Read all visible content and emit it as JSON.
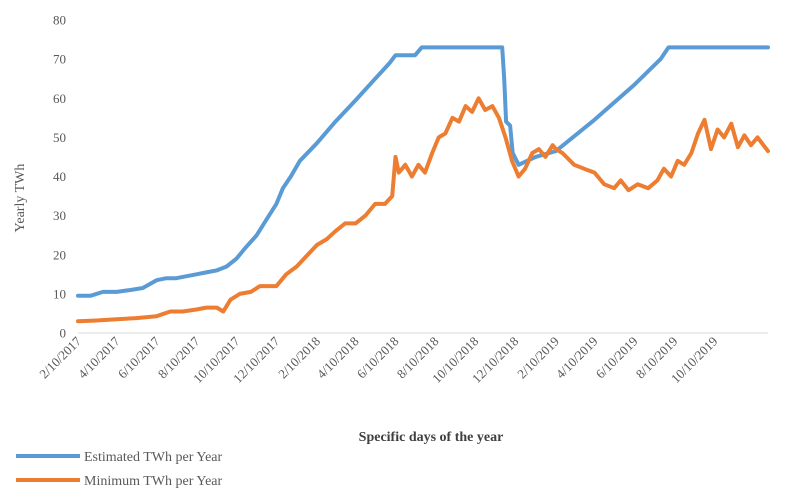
{
  "chart_data": {
    "type": "line",
    "title": "",
    "xlabel": "Specific days of the year",
    "ylabel": "Yearly TWh",
    "ylim": [
      0,
      80
    ],
    "yticks": [
      0,
      10,
      20,
      30,
      40,
      50,
      60,
      70,
      80
    ],
    "xlim": [
      "2017-02-10",
      "2019-12-31"
    ],
    "grid": false,
    "legend_position": "bottom-left",
    "xtick_labels": [
      {
        "date": "2017-02-10",
        "label": "2/10/2017"
      },
      {
        "date": "2017-04-10",
        "label": "4/10/2017"
      },
      {
        "date": "2017-06-10",
        "label": "6/10/2017"
      },
      {
        "date": "2017-08-10",
        "label": "8/10/2017"
      },
      {
        "date": "2017-10-10",
        "label": "10/10/2017"
      },
      {
        "date": "2017-12-10",
        "label": "12/10/2017"
      },
      {
        "date": "2018-02-10",
        "label": "2/10/2018"
      },
      {
        "date": "2018-04-10",
        "label": "4/10/2018"
      },
      {
        "date": "2018-06-10",
        "label": "6/10/2018"
      },
      {
        "date": "2018-08-10",
        "label": "8/10/2018"
      },
      {
        "date": "2018-10-10",
        "label": "10/10/2018"
      },
      {
        "date": "2018-12-10",
        "label": "12/10/2018"
      },
      {
        "date": "2019-02-10",
        "label": "2/10/2019"
      },
      {
        "date": "2019-04-10",
        "label": "4/10/2019"
      },
      {
        "date": "2019-06-10",
        "label": "6/10/2019"
      },
      {
        "date": "2019-08-10",
        "label": "8/10/2019"
      },
      {
        "date": "2019-10-10",
        "label": "10/10/2019"
      }
    ],
    "series": [
      {
        "name": "Estimated TWh per Year",
        "color": "#5b9bd5",
        "points": [
          [
            "2017-02-10",
            9.5
          ],
          [
            "2017-03-01",
            9.5
          ],
          [
            "2017-03-20",
            10.5
          ],
          [
            "2017-04-10",
            10.5
          ],
          [
            "2017-05-01",
            11.0
          ],
          [
            "2017-05-20",
            11.5
          ],
          [
            "2017-06-10",
            13.5
          ],
          [
            "2017-06-25",
            14.0
          ],
          [
            "2017-07-10",
            14.0
          ],
          [
            "2017-07-25",
            14.5
          ],
          [
            "2017-08-10",
            15.0
          ],
          [
            "2017-08-25",
            15.5
          ],
          [
            "2017-09-10",
            16.0
          ],
          [
            "2017-09-25",
            17.0
          ],
          [
            "2017-10-10",
            19.0
          ],
          [
            "2017-10-25",
            22.0
          ],
          [
            "2017-11-10",
            25.0
          ],
          [
            "2017-11-25",
            29.0
          ],
          [
            "2017-12-10",
            33.0
          ],
          [
            "2017-12-20",
            37.0
          ],
          [
            "2018-01-01",
            40.0
          ],
          [
            "2018-01-15",
            44.0
          ],
          [
            "2018-02-10",
            48.5
          ],
          [
            "2018-03-10",
            54.0
          ],
          [
            "2018-04-10",
            59.5
          ],
          [
            "2018-05-10",
            65.0
          ],
          [
            "2018-06-01",
            69.0
          ],
          [
            "2018-06-10",
            71.0
          ],
          [
            "2018-07-10",
            71.0
          ],
          [
            "2018-07-20",
            73.0
          ],
          [
            "2018-10-10",
            73.0
          ],
          [
            "2018-11-10",
            73.0
          ],
          [
            "2018-11-20",
            73.0
          ],
          [
            "2018-11-23",
            65.0
          ],
          [
            "2018-11-26",
            54.0
          ],
          [
            "2018-12-02",
            53.0
          ],
          [
            "2018-12-06",
            46.0
          ],
          [
            "2018-12-15",
            43.0
          ],
          [
            "2019-01-10",
            45.0
          ],
          [
            "2019-02-10",
            46.5
          ],
          [
            "2019-04-10",
            54.5
          ],
          [
            "2019-06-10",
            63.5
          ],
          [
            "2019-07-20",
            70.0
          ],
          [
            "2019-08-01",
            73.0
          ],
          [
            "2019-10-10",
            73.0
          ],
          [
            "2019-12-31",
            73.0
          ]
        ]
      },
      {
        "name": "Minimum TWh per Year",
        "color": "#ed7d31",
        "points": [
          [
            "2017-02-10",
            3.0
          ],
          [
            "2017-03-10",
            3.2
          ],
          [
            "2017-04-10",
            3.5
          ],
          [
            "2017-05-10",
            3.8
          ],
          [
            "2017-06-10",
            4.3
          ],
          [
            "2017-07-01",
            5.5
          ],
          [
            "2017-07-20",
            5.5
          ],
          [
            "2017-08-10",
            6.0
          ],
          [
            "2017-08-25",
            6.5
          ],
          [
            "2017-09-10",
            6.5
          ],
          [
            "2017-09-20",
            5.5
          ],
          [
            "2017-10-01",
            8.5
          ],
          [
            "2017-10-15",
            10.0
          ],
          [
            "2017-11-01",
            10.5
          ],
          [
            "2017-11-15",
            12.0
          ],
          [
            "2017-12-10",
            12.0
          ],
          [
            "2017-12-25",
            15.0
          ],
          [
            "2018-01-10",
            17.0
          ],
          [
            "2018-02-10",
            22.5
          ],
          [
            "2018-02-25",
            24.0
          ],
          [
            "2018-03-10",
            26.0
          ],
          [
            "2018-03-25",
            28.0
          ],
          [
            "2018-04-10",
            28.0
          ],
          [
            "2018-04-25",
            30.0
          ],
          [
            "2018-05-10",
            33.0
          ],
          [
            "2018-05-25",
            33.0
          ],
          [
            "2018-06-05",
            35.0
          ],
          [
            "2018-06-10",
            45.0
          ],
          [
            "2018-06-15",
            41.0
          ],
          [
            "2018-06-25",
            43.0
          ],
          [
            "2018-07-05",
            40.0
          ],
          [
            "2018-07-15",
            43.0
          ],
          [
            "2018-07-25",
            41.0
          ],
          [
            "2018-08-05",
            46.0
          ],
          [
            "2018-08-15",
            50.0
          ],
          [
            "2018-08-25",
            51.0
          ],
          [
            "2018-09-05",
            55.0
          ],
          [
            "2018-09-15",
            54.0
          ],
          [
            "2018-09-25",
            58.0
          ],
          [
            "2018-10-05",
            56.5
          ],
          [
            "2018-10-15",
            60.0
          ],
          [
            "2018-10-25",
            57.0
          ],
          [
            "2018-11-05",
            58.0
          ],
          [
            "2018-11-15",
            55.0
          ],
          [
            "2018-11-25",
            50.0
          ],
          [
            "2018-12-05",
            44.0
          ],
          [
            "2018-12-15",
            40.0
          ],
          [
            "2018-12-25",
            42.0
          ],
          [
            "2019-01-05",
            46.0
          ],
          [
            "2019-01-15",
            47.0
          ],
          [
            "2019-01-25",
            45.0
          ],
          [
            "2019-02-05",
            48.0
          ],
          [
            "2019-02-10",
            47.0
          ],
          [
            "2019-02-20",
            46.0
          ],
          [
            "2019-03-10",
            43.0
          ],
          [
            "2019-03-25",
            42.0
          ],
          [
            "2019-04-10",
            41.0
          ],
          [
            "2019-04-25",
            38.0
          ],
          [
            "2019-05-10",
            37.0
          ],
          [
            "2019-05-20",
            39.0
          ],
          [
            "2019-06-01",
            36.5
          ],
          [
            "2019-06-15",
            38.0
          ],
          [
            "2019-07-01",
            37.0
          ],
          [
            "2019-07-15",
            39.0
          ],
          [
            "2019-07-25",
            42.0
          ],
          [
            "2019-08-05",
            40.0
          ],
          [
            "2019-08-15",
            44.0
          ],
          [
            "2019-08-25",
            43.0
          ],
          [
            "2019-09-05",
            46.0
          ],
          [
            "2019-09-15",
            51.0
          ],
          [
            "2019-09-25",
            54.5
          ],
          [
            "2019-10-05",
            47.0
          ],
          [
            "2019-10-15",
            52.0
          ],
          [
            "2019-10-25",
            50.0
          ],
          [
            "2019-11-05",
            53.5
          ],
          [
            "2019-11-15",
            47.5
          ],
          [
            "2019-11-25",
            50.5
          ],
          [
            "2019-12-05",
            48.0
          ],
          [
            "2019-12-15",
            50.0
          ],
          [
            "2019-12-31",
            46.5
          ]
        ]
      }
    ]
  }
}
